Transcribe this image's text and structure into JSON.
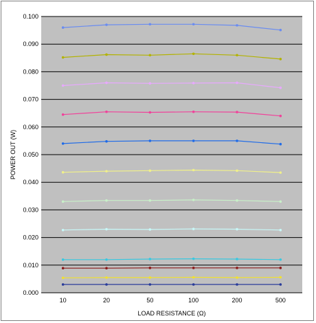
{
  "chart_data": {
    "type": "line",
    "title": "",
    "xlabel": "LOAD RESISTANCE (Ω)",
    "ylabel": "POWER OUT (W)",
    "categories": [
      "10",
      "20",
      "50",
      "100",
      "200",
      "500"
    ],
    "ylim": [
      0,
      0.1
    ],
    "y_ticks": [
      "0.000",
      "0.010",
      "0.020",
      "0.030",
      "0.040",
      "0.050",
      "0.060",
      "0.070",
      "0.080",
      "0.090",
      "0.100"
    ],
    "grid": "horizontal",
    "legend": "none",
    "plot_background": "#c0c0c0",
    "series": [
      {
        "color": "#6a8cf0",
        "values": [
          0.096,
          0.097,
          0.0972,
          0.0972,
          0.0968,
          0.0951
        ]
      },
      {
        "color": "#b2b200",
        "values": [
          0.0852,
          0.0862,
          0.086,
          0.0865,
          0.086,
          0.0846
        ]
      },
      {
        "color": "#e8a8ff",
        "values": [
          0.075,
          0.076,
          0.0758,
          0.0759,
          0.076,
          0.0742
        ]
      },
      {
        "color": "#f0429a",
        "values": [
          0.0645,
          0.0655,
          0.0653,
          0.0655,
          0.0654,
          0.064
        ]
      },
      {
        "color": "#1f6be8",
        "values": [
          0.054,
          0.0548,
          0.055,
          0.055,
          0.055,
          0.0538
        ]
      },
      {
        "color": "#f0f08a",
        "values": [
          0.0436,
          0.044,
          0.0442,
          0.0444,
          0.0442,
          0.0435
        ]
      },
      {
        "color": "#c8f0c8",
        "values": [
          0.033,
          0.0334,
          0.0334,
          0.0336,
          0.0334,
          0.033
        ]
      },
      {
        "color": "#c8f8f8",
        "values": [
          0.0227,
          0.023,
          0.0229,
          0.0231,
          0.023,
          0.0227
        ]
      },
      {
        "color": "#38c8e0",
        "values": [
          0.012,
          0.012,
          0.0122,
          0.0123,
          0.0122,
          0.012
        ]
      },
      {
        "color": "#8b1a1a",
        "values": [
          0.0089,
          0.0089,
          0.009,
          0.009,
          0.009,
          0.009
        ]
      },
      {
        "color": "#f0e030",
        "values": [
          0.0054,
          0.0055,
          0.0055,
          0.0056,
          0.0055,
          0.0056
        ]
      },
      {
        "color": "#2a3c9a",
        "values": [
          0.003,
          0.003,
          0.003,
          0.003,
          0.003,
          0.003
        ]
      }
    ]
  }
}
